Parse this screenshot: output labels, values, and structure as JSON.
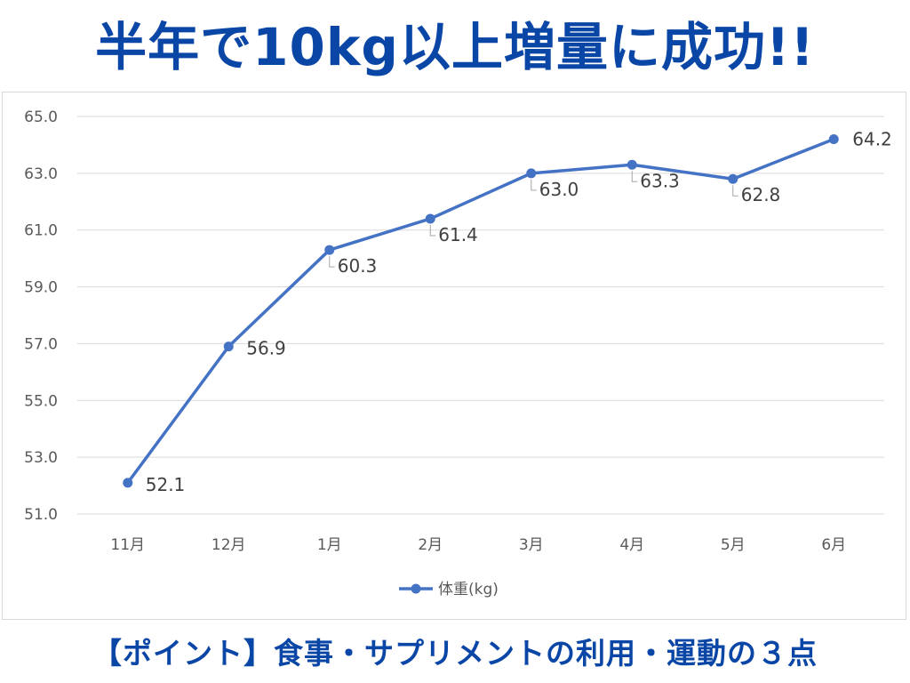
{
  "headline": "半年で10kg以上増量に成功!!",
  "footer": "【ポイント】食事・サプリメントの利用・運動の３点",
  "colors": {
    "headline": "#0a46a6",
    "series": "#4472c4",
    "grid": "#d9d9d9",
    "tick_text": "#595959",
    "label_text": "#404040"
  },
  "chart_data": {
    "type": "line",
    "title": "",
    "xlabel": "",
    "ylabel": "",
    "categories": [
      "11月",
      "12月",
      "1月",
      "2月",
      "3月",
      "4月",
      "5月",
      "6月"
    ],
    "series": [
      {
        "name": "体重(kg)",
        "values": [
          52.1,
          56.9,
          60.3,
          61.4,
          63.0,
          63.3,
          62.8,
          64.2
        ],
        "labels": [
          "52.1",
          "56.9",
          "60.3",
          "61.4",
          "63.0",
          "63.3",
          "62.8",
          "64.2"
        ]
      }
    ],
    "yticks": [
      "51.0",
      "53.0",
      "55.0",
      "57.0",
      "59.0",
      "61.0",
      "63.0",
      "65.0"
    ],
    "ylim": [
      51,
      65
    ],
    "grid": true,
    "legend": "bottom",
    "markers": "circle"
  }
}
